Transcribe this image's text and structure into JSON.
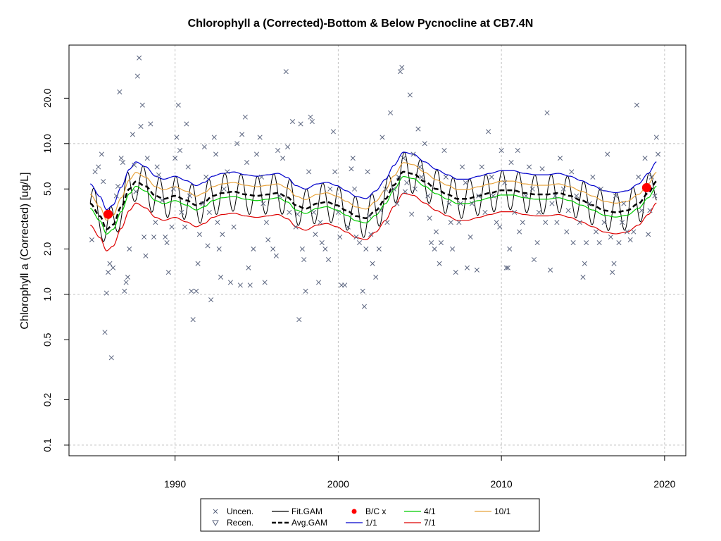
{
  "chart_data": {
    "type": "scatter",
    "title": "Chlorophyll a (Corrected)-Bottom & Below Pycnocline at CB7.4N",
    "xlabel": "",
    "ylabel": "Chlorophyll a (Corrected) [ug/L]",
    "y_scale": "log",
    "xlim": [
      1983.5,
      2021.3
    ],
    "ylim": [
      0.085,
      45
    ],
    "x_ticks": [
      1990,
      2000,
      2010,
      2020
    ],
    "y_ticks": [
      0.1,
      0.2,
      0.5,
      1.0,
      2.0,
      5.0,
      10.0,
      20.0
    ],
    "y_tick_labels": [
      "0.1",
      "0.2",
      "0.5",
      "1.0",
      "2.0",
      "5.0",
      "10.0",
      "20.0"
    ],
    "grid": true,
    "legend_position": "bottom",
    "legend": [
      {
        "label": "Uncen.",
        "symbol": "x",
        "color": "#5c6680"
      },
      {
        "label": "Recen.",
        "symbol": "triangle-down",
        "color": "#5c6680"
      },
      {
        "label": "Fit.GAM",
        "symbol": "line",
        "color": "#000000"
      },
      {
        "label": "Avg.GAM",
        "symbol": "dashed-line",
        "color": "#000000"
      },
      {
        "label": "B/C x",
        "symbol": "dot",
        "color": "#ff0000"
      },
      {
        "label": "1/1",
        "symbol": "line",
        "color": "#0000cc"
      },
      {
        "label": "4/1",
        "symbol": "line",
        "color": "#00cc00"
      },
      {
        "label": "7/1",
        "symbol": "line",
        "color": "#dd0000"
      },
      {
        "label": "10/1",
        "symbol": "line",
        "color": "#e8a33c"
      }
    ],
    "colors": {
      "points": "#5c6680",
      "fit": "#000000",
      "avg": "#000000",
      "bc": "#ff0000",
      "d0101": "#0000cc",
      "d0401": "#00cc00",
      "d0701": "#dd0000",
      "d1001": "#e8a33c"
    },
    "avg_gam": {
      "x": [
        1984.8,
        1985.4,
        1985.8,
        1986.2,
        1986.7,
        1987.2,
        1987.6,
        1988.2,
        1988.8,
        1989.3,
        1990.0,
        1990.7,
        1991.3,
        1991.8,
        1992.3,
        1992.9,
        1993.6,
        1994.3,
        1995.0,
        1995.7,
        1996.3,
        1996.9,
        1997.4,
        1998.0,
        1998.7,
        1999.3,
        1999.9,
        2000.5,
        2001.1,
        2001.7,
        2002.3,
        2002.9,
        2003.4,
        2004.0,
        2004.6,
        2005.3,
        2006.0,
        2006.7,
        2007.3,
        2007.9,
        2008.6,
        2009.3,
        2010.0,
        2010.7,
        2011.4,
        2012.1,
        2012.8,
        2013.5,
        2014.2,
        2014.9,
        2015.6,
        2016.3,
        2017.0,
        2017.7,
        2018.4,
        2019.0,
        2019.5
      ],
      "y": [
        4.0,
        3.3,
        2.7,
        2.9,
        3.8,
        5.0,
        5.6,
        5.2,
        4.5,
        4.3,
        4.5,
        4.2,
        3.9,
        4.1,
        4.5,
        4.7,
        4.8,
        4.6,
        4.5,
        4.6,
        4.7,
        4.4,
        3.9,
        3.7,
        4.0,
        4.1,
        3.9,
        3.6,
        3.3,
        3.2,
        3.6,
        4.3,
        5.3,
        6.5,
        6.3,
        5.6,
        5.0,
        4.6,
        4.3,
        4.3,
        4.5,
        4.7,
        4.9,
        4.9,
        4.7,
        4.6,
        4.6,
        4.7,
        4.5,
        4.2,
        3.9,
        3.6,
        3.5,
        3.6,
        4.0,
        4.7,
        5.6
      ]
    },
    "seasonal_offsets": {
      "d0101": 1.35,
      "d1001": 1.15,
      "d0401": 0.93,
      "d0701": 0.72,
      "fit_amplitude": 1.35,
      "fit_peak_month": 0.0
    },
    "bc_points": [
      {
        "x": 1985.9,
        "y": 3.4
      },
      {
        "x": 2018.9,
        "y": 5.1
      }
    ],
    "censored_points": [
      {
        "x": 1985.7,
        "y": 0.1
      },
      {
        "x": 1986.6,
        "y": 0.1
      },
      {
        "x": 1997.4,
        "y": 0.1
      }
    ],
    "uncensored_points": [
      [
        1984.9,
        2.3
      ],
      [
        1985.1,
        6.5
      ],
      [
        1985.3,
        7.0
      ],
      [
        1985.5,
        8.5
      ],
      [
        1985.6,
        5.6
      ],
      [
        1985.7,
        0.56
      ],
      [
        1985.8,
        1.02
      ],
      [
        1985.9,
        1.4
      ],
      [
        1986.0,
        1.6
      ],
      [
        1986.1,
        0.38
      ],
      [
        1986.2,
        1.5
      ],
      [
        1986.4,
        4.5
      ],
      [
        1986.5,
        5.2
      ],
      [
        1986.6,
        22.0
      ],
      [
        1986.7,
        8.0
      ],
      [
        1986.8,
        7.5
      ],
      [
        1986.9,
        1.05
      ],
      [
        1987.0,
        1.2
      ],
      [
        1987.1,
        1.3
      ],
      [
        1987.2,
        2.0
      ],
      [
        1987.4,
        11.5
      ],
      [
        1987.5,
        7.2
      ],
      [
        1987.6,
        4.8
      ],
      [
        1987.7,
        28.0
      ],
      [
        1987.8,
        37.0
      ],
      [
        1987.9,
        13.0
      ],
      [
        1988.0,
        18.0
      ],
      [
        1988.1,
        2.4
      ],
      [
        1988.2,
        1.8
      ],
      [
        1988.3,
        8.0
      ],
      [
        1988.5,
        13.5
      ],
      [
        1988.7,
        2.4
      ],
      [
        1988.8,
        3.0
      ],
      [
        1988.9,
        7.0
      ],
      [
        1989.0,
        6.2
      ],
      [
        1989.2,
        4.2
      ],
      [
        1989.4,
        2.4
      ],
      [
        1989.5,
        2.2
      ],
      [
        1989.6,
        1.4
      ],
      [
        1989.8,
        2.8
      ],
      [
        1989.9,
        5.0
      ],
      [
        1990.0,
        8.0
      ],
      [
        1990.1,
        11.0
      ],
      [
        1990.2,
        18.0
      ],
      [
        1990.3,
        9.0
      ],
      [
        1990.4,
        3.5
      ],
      [
        1990.6,
        2.8
      ],
      [
        1990.7,
        13.5
      ],
      [
        1990.8,
        7.0
      ],
      [
        1990.9,
        4.5
      ],
      [
        1991.0,
        1.05
      ],
      [
        1991.1,
        0.68
      ],
      [
        1991.3,
        1.05
      ],
      [
        1991.4,
        1.6
      ],
      [
        1991.5,
        2.5
      ],
      [
        1991.7,
        4.0
      ],
      [
        1991.8,
        9.5
      ],
      [
        1991.9,
        6.0
      ],
      [
        1992.0,
        2.1
      ],
      [
        1992.1,
        3.5
      ],
      [
        1992.2,
        0.92
      ],
      [
        1992.4,
        11.0
      ],
      [
        1992.5,
        8.5
      ],
      [
        1992.6,
        3.0
      ],
      [
        1992.7,
        2.0
      ],
      [
        1992.8,
        1.3
      ],
      [
        1992.9,
        2.5
      ],
      [
        1993.0,
        5.0
      ],
      [
        1993.2,
        6.5
      ],
      [
        1993.4,
        1.2
      ],
      [
        1993.6,
        2.8
      ],
      [
        1993.8,
        10.0
      ],
      [
        1994.0,
        1.15
      ],
      [
        1994.1,
        11.5
      ],
      [
        1994.3,
        15.0
      ],
      [
        1994.4,
        7.5
      ],
      [
        1994.5,
        1.5
      ],
      [
        1994.6,
        1.15
      ],
      [
        1994.8,
        2.0
      ],
      [
        1995.0,
        8.5
      ],
      [
        1995.2,
        11.0
      ],
      [
        1995.3,
        6.0
      ],
      [
        1995.4,
        4.0
      ],
      [
        1995.5,
        1.2
      ],
      [
        1995.6,
        3.0
      ],
      [
        1995.7,
        2.3
      ],
      [
        1996.0,
        2.0
      ],
      [
        1996.2,
        1.8
      ],
      [
        1996.3,
        9.0
      ],
      [
        1996.4,
        4.5
      ],
      [
        1996.6,
        8.0
      ],
      [
        1996.8,
        30.0
      ],
      [
        1996.9,
        9.5
      ],
      [
        1997.0,
        3.5
      ],
      [
        1997.2,
        14.0
      ],
      [
        1997.4,
        2.8
      ],
      [
        1997.5,
        3.4
      ],
      [
        1997.6,
        0.68
      ],
      [
        1997.7,
        13.5
      ],
      [
        1997.8,
        2.0
      ],
      [
        1997.9,
        1.7
      ],
      [
        1998.0,
        1.05
      ],
      [
        1998.2,
        6.5
      ],
      [
        1998.3,
        15.0
      ],
      [
        1998.4,
        14.0
      ],
      [
        1998.5,
        3.5
      ],
      [
        1998.6,
        2.5
      ],
      [
        1998.8,
        1.2
      ],
      [
        1998.9,
        3.0
      ],
      [
        1999.0,
        2.2
      ],
      [
        1999.2,
        2.0
      ],
      [
        1999.4,
        1.7
      ],
      [
        1999.5,
        5.0
      ],
      [
        1999.7,
        12.0
      ],
      [
        1999.8,
        6.5
      ],
      [
        2000.0,
        3.5
      ],
      [
        2000.1,
        2.4
      ],
      [
        2000.2,
        1.15
      ],
      [
        2000.4,
        1.15
      ],
      [
        2000.6,
        2.8
      ],
      [
        2000.8,
        6.8
      ],
      [
        2000.9,
        8.0
      ],
      [
        2001.0,
        5.0
      ],
      [
        2001.1,
        2.4
      ],
      [
        2001.3,
        2.2
      ],
      [
        2001.5,
        1.05
      ],
      [
        2001.6,
        0.83
      ],
      [
        2001.7,
        2.0
      ],
      [
        2001.8,
        6.5
      ],
      [
        2001.9,
        3.3
      ],
      [
        2002.0,
        2.5
      ],
      [
        2002.1,
        1.6
      ],
      [
        2002.3,
        1.3
      ],
      [
        2002.5,
        2.0
      ],
      [
        2002.6,
        3.6
      ],
      [
        2002.7,
        11.0
      ],
      [
        2002.9,
        5.0
      ],
      [
        2003.0,
        3.0
      ],
      [
        2003.2,
        16.0
      ],
      [
        2003.4,
        5.0
      ],
      [
        2003.6,
        4.0
      ],
      [
        2003.7,
        6.0
      ],
      [
        2003.8,
        30.0
      ],
      [
        2003.9,
        32.0
      ],
      [
        2004.0,
        8.0
      ],
      [
        2004.1,
        4.8
      ],
      [
        2004.2,
        5.5
      ],
      [
        2004.4,
        21.0
      ],
      [
        2004.5,
        3.4
      ],
      [
        2004.6,
        8.5
      ],
      [
        2004.7,
        5.0
      ],
      [
        2004.9,
        12.5
      ],
      [
        2005.0,
        7.0
      ],
      [
        2005.1,
        6.0
      ],
      [
        2005.3,
        10.0
      ],
      [
        2005.5,
        4.5
      ],
      [
        2005.6,
        3.2
      ],
      [
        2005.7,
        2.2
      ],
      [
        2005.9,
        2.0
      ],
      [
        2006.0,
        2.6
      ],
      [
        2006.2,
        1.6
      ],
      [
        2006.3,
        2.2
      ],
      [
        2006.5,
        9.0
      ],
      [
        2006.6,
        6.0
      ],
      [
        2006.8,
        4.0
      ],
      [
        2006.9,
        3.0
      ],
      [
        2007.0,
        2.0
      ],
      [
        2007.2,
        1.4
      ],
      [
        2007.4,
        3.0
      ],
      [
        2007.5,
        4.0
      ],
      [
        2007.6,
        7.0
      ],
      [
        2007.8,
        5.5
      ],
      [
        2007.9,
        1.5
      ],
      [
        2008.1,
        2.4
      ],
      [
        2008.2,
        4.0
      ],
      [
        2008.5,
        1.45
      ],
      [
        2008.6,
        4.5
      ],
      [
        2008.8,
        7.0
      ],
      [
        2009.0,
        3.5
      ],
      [
        2009.2,
        12.0
      ],
      [
        2009.4,
        6.0
      ],
      [
        2009.5,
        4.5
      ],
      [
        2009.7,
        3.0
      ],
      [
        2009.9,
        2.8
      ],
      [
        2010.0,
        9.0
      ],
      [
        2010.2,
        5.5
      ],
      [
        2010.3,
        1.5
      ],
      [
        2010.4,
        1.5
      ],
      [
        2010.5,
        2.0
      ],
      [
        2010.6,
        7.5
      ],
      [
        2010.8,
        3.5
      ],
      [
        2011.0,
        9.0
      ],
      [
        2011.1,
        2.6
      ],
      [
        2011.3,
        3.0
      ],
      [
        2011.5,
        4.5
      ],
      [
        2011.7,
        7.0
      ],
      [
        2011.9,
        5.0
      ],
      [
        2012.0,
        1.7
      ],
      [
        2012.2,
        2.2
      ],
      [
        2012.3,
        3.5
      ],
      [
        2012.5,
        6.8
      ],
      [
        2012.7,
        3.0
      ],
      [
        2012.8,
        16.0
      ],
      [
        2013.0,
        1.45
      ],
      [
        2013.1,
        4.0
      ],
      [
        2013.3,
        4.5
      ],
      [
        2013.4,
        3.0
      ],
      [
        2013.6,
        8.0
      ],
      [
        2013.8,
        5.0
      ],
      [
        2014.0,
        2.6
      ],
      [
        2014.1,
        3.6
      ],
      [
        2014.3,
        6.5
      ],
      [
        2014.4,
        2.2
      ],
      [
        2014.6,
        4.5
      ],
      [
        2014.8,
        3.0
      ],
      [
        2015.0,
        1.3
      ],
      [
        2015.1,
        1.6
      ],
      [
        2015.2,
        2.2
      ],
      [
        2015.4,
        4.0
      ],
      [
        2015.6,
        6.0
      ],
      [
        2015.8,
        2.6
      ],
      [
        2016.0,
        2.2
      ],
      [
        2016.1,
        5.0
      ],
      [
        2016.3,
        3.0
      ],
      [
        2016.5,
        8.5
      ],
      [
        2016.7,
        2.4
      ],
      [
        2016.8,
        1.4
      ],
      [
        2016.9,
        1.6
      ],
      [
        2017.0,
        4.5
      ],
      [
        2017.2,
        2.2
      ],
      [
        2017.4,
        3.0
      ],
      [
        2017.5,
        4.0
      ],
      [
        2017.7,
        2.6
      ],
      [
        2017.9,
        2.3
      ],
      [
        2018.1,
        2.6
      ],
      [
        2018.3,
        18.0
      ],
      [
        2018.4,
        6.0
      ],
      [
        2018.6,
        3.6
      ],
      [
        2018.8,
        8.0
      ],
      [
        2019.0,
        2.5
      ],
      [
        2019.1,
        3.6
      ],
      [
        2019.2,
        6.0
      ],
      [
        2019.4,
        4.5
      ],
      [
        2019.5,
        11.0
      ],
      [
        2019.6,
        8.5
      ]
    ]
  }
}
